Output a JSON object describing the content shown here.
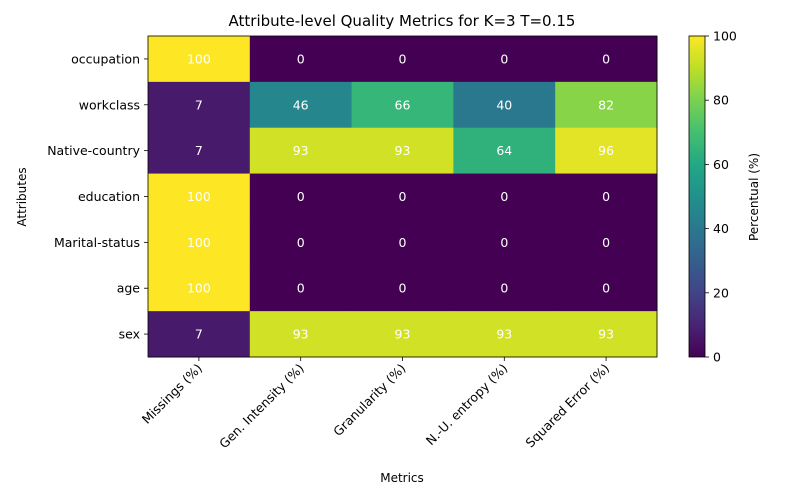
{
  "chart_data": {
    "type": "heatmap",
    "title": "Attribute-level Quality Metrics for K=3 T=0.15",
    "xlabel": "Metrics",
    "ylabel": "Attributes",
    "colorbar_label": "Percentual (%)",
    "colormap": "viridis",
    "vlim": [
      0,
      100
    ],
    "colorbar_ticks": [
      0,
      20,
      40,
      60,
      80,
      100
    ],
    "columns": [
      "Missings (%)",
      "Gen. Intensity (%)",
      "Granularity (%)",
      "N.-U. entropy (%)",
      "Squared Error (%)"
    ],
    "rows": [
      "occupation",
      "workclass",
      "Native-country",
      "education",
      "Marital-status",
      "age",
      "sex"
    ],
    "values": [
      [
        100,
        0,
        0,
        0,
        0
      ],
      [
        7,
        46,
        66,
        40,
        82
      ],
      [
        7,
        93,
        93,
        64,
        96
      ],
      [
        100,
        0,
        0,
        0,
        0
      ],
      [
        100,
        0,
        0,
        0,
        0
      ],
      [
        100,
        0,
        0,
        0,
        0
      ],
      [
        7,
        93,
        93,
        93,
        93
      ]
    ],
    "cell_label_color": "#ffffff"
  }
}
